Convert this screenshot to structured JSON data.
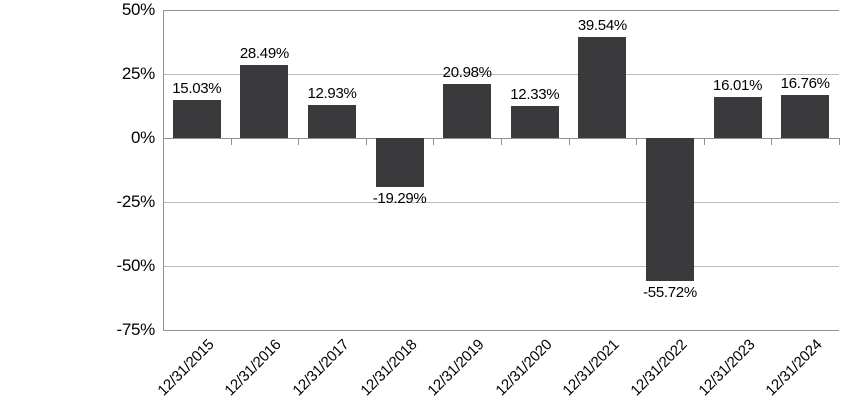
{
  "chart_data": {
    "type": "bar",
    "title": "",
    "xlabel": "",
    "ylabel": "",
    "categories": [
      "12/31/2015",
      "12/31/2016",
      "12/31/2017",
      "12/31/2018",
      "12/31/2019",
      "12/31/2020",
      "12/31/2021",
      "12/31/2022",
      "12/31/2023",
      "12/31/2024"
    ],
    "values": [
      15.03,
      28.49,
      12.93,
      -19.29,
      20.98,
      12.33,
      39.54,
      -55.72,
      16.01,
      16.76
    ],
    "data_labels": [
      "15.03%",
      "28.49%",
      "12.93%",
      "-19.29%",
      "20.98%",
      "12.33%",
      "39.54%",
      "-55.72%",
      "16.01%",
      "16.76%"
    ],
    "ylim": [
      -75,
      50
    ],
    "y_ticks": [
      50,
      25,
      0,
      -25,
      -50,
      -75
    ],
    "y_tick_labels": [
      "50%",
      "25%",
      "0%",
      "-25%",
      "-50%",
      "-75%"
    ],
    "grid": true,
    "legend": false,
    "colors": {
      "bar": "#3a3a3c",
      "gridline": "#bbbbbb",
      "axis": "#919191",
      "text": "#000000",
      "background": "#ffffff"
    }
  }
}
